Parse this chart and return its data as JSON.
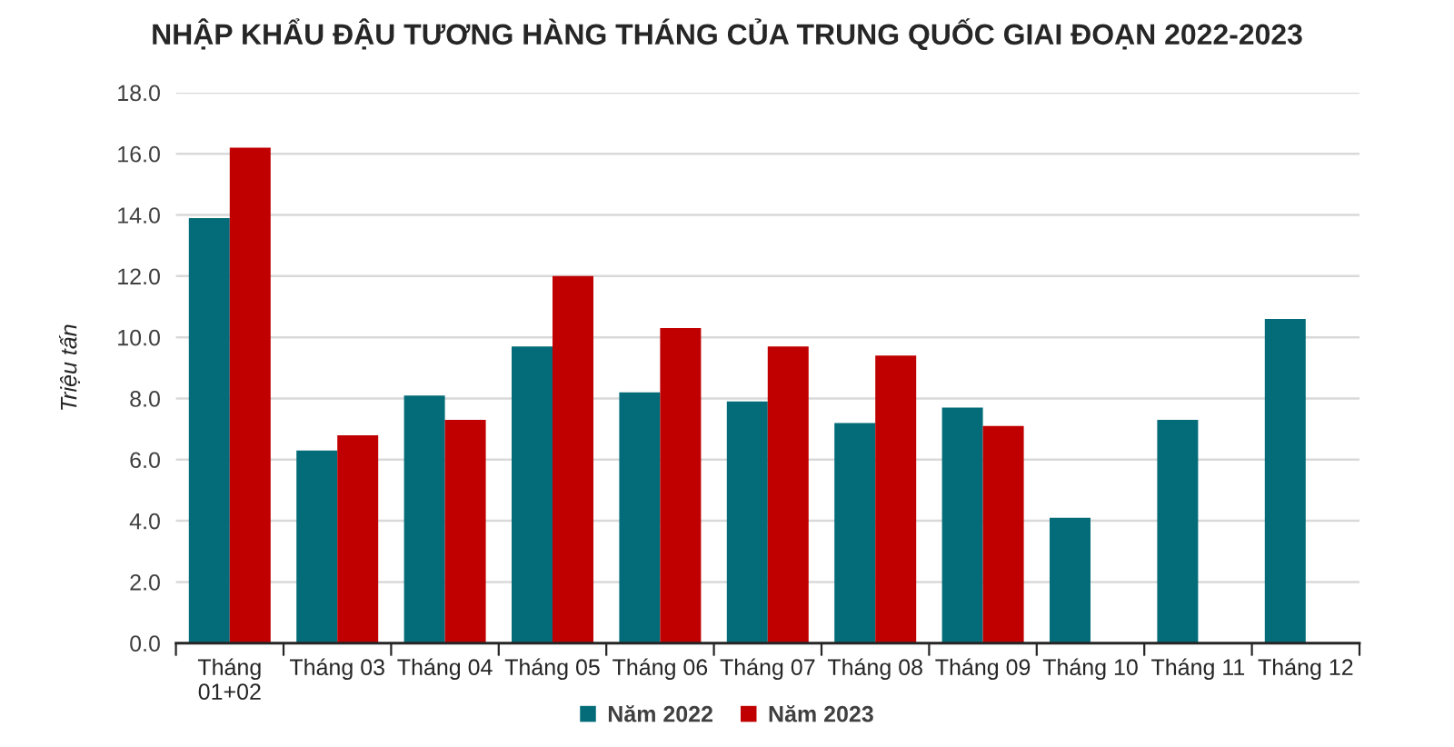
{
  "chart_data": {
    "type": "bar",
    "title": "NHẬP KHẨU ĐẬU TƯƠNG HÀNG THÁNG CỦA TRUNG QUỐC GIAI ĐOẠN 2022-2023",
    "ylabel": "Triệu tấn",
    "categories": [
      "Tháng\n01+02",
      "Tháng 03",
      "Tháng 04",
      "Tháng 05",
      "Tháng 06",
      "Tháng 07",
      "Tháng 08",
      "Tháng 09",
      "Tháng 10",
      "Tháng 11",
      "Tháng 12"
    ],
    "series": [
      {
        "name": "Năm 2022",
        "color": "#036c78",
        "values": [
          13.9,
          6.3,
          8.1,
          9.7,
          8.2,
          7.9,
          7.2,
          7.7,
          4.1,
          7.3,
          10.6
        ]
      },
      {
        "name": "Năm 2023",
        "color": "#c00000",
        "values": [
          16.2,
          6.8,
          7.3,
          12.0,
          10.3,
          9.7,
          9.4,
          7.1,
          null,
          null,
          null
        ]
      }
    ],
    "ylim": [
      0,
      18
    ],
    "yticks": [
      {
        "value": 0,
        "label": "0.0"
      },
      {
        "value": 2,
        "label": "2.0"
      },
      {
        "value": 4,
        "label": "4.0"
      },
      {
        "value": 6,
        "label": "6.0"
      },
      {
        "value": 8,
        "label": "8.0"
      },
      {
        "value": 10,
        "label": "10.0"
      },
      {
        "value": 12,
        "label": "12.0"
      },
      {
        "value": 14,
        "label": "14.0"
      },
      {
        "value": 16,
        "label": "16.0"
      },
      {
        "value": 18,
        "label": "18.0"
      }
    ],
    "grid": "y",
    "legend": "bottom"
  }
}
